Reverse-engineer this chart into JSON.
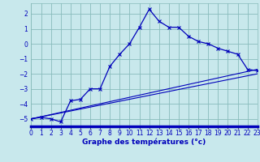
{
  "bg_color": "#c8e8ec",
  "grid_color": "#88bbbb",
  "line_color": "#0000bb",
  "xlim": [
    0,
    23
  ],
  "ylim": [
    -5.5,
    2.7
  ],
  "yticks": [
    -5,
    -4,
    -3,
    -2,
    -1,
    0,
    1,
    2
  ],
  "xticks": [
    0,
    1,
    2,
    3,
    4,
    5,
    6,
    7,
    8,
    9,
    10,
    11,
    12,
    13,
    14,
    15,
    16,
    17,
    18,
    19,
    20,
    21,
    22,
    23
  ],
  "main_x": [
    0,
    1,
    2,
    3,
    4,
    5,
    6,
    7,
    8,
    9,
    10,
    11,
    12,
    13,
    14,
    15,
    16,
    17,
    18,
    19,
    20,
    21,
    22,
    23
  ],
  "main_y": [
    -5.0,
    -4.9,
    -5.0,
    -5.2,
    -3.8,
    -3.7,
    -3.0,
    -3.0,
    -1.5,
    -0.7,
    0.0,
    1.1,
    2.3,
    1.5,
    1.1,
    1.1,
    0.5,
    0.15,
    0.0,
    -0.3,
    -0.5,
    -0.7,
    -1.7,
    -1.8
  ],
  "line2_x": [
    0,
    23
  ],
  "line2_y": [
    -5.0,
    -1.7
  ],
  "line3_x": [
    0,
    23
  ],
  "line3_y": [
    -5.0,
    -2.0
  ],
  "xlabel": "Graphe des températures (°c)",
  "xlabel_fontsize": 6.5,
  "tick_fontsize": 5.5
}
